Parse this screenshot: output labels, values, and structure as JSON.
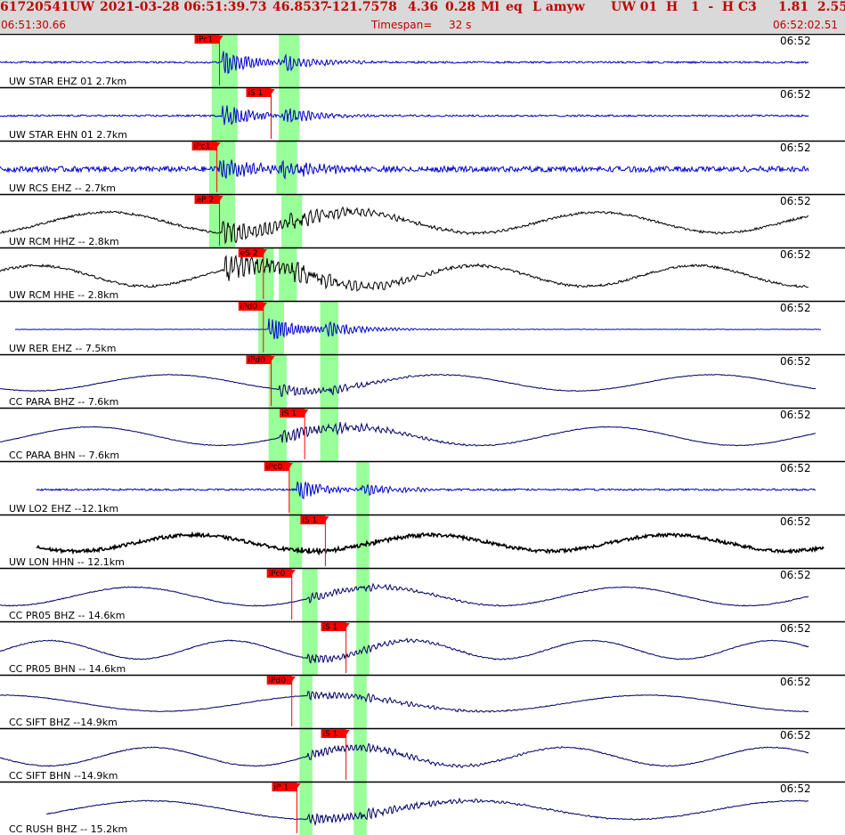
{
  "header": {
    "event_id": "61720541",
    "network": "UW",
    "origin_datetime": "2021-03-28 06:51:39.73",
    "latitude": "46.8537",
    "longitude": "-121.7578",
    "depth": "4.36",
    "magnitude": "0.28",
    "mag_type": "Ml",
    "event_type": "eq",
    "flags": "L amyw",
    "source_info": "UW 01  H   1  -  H C3",
    "extra_values": "1.81  2.55",
    "start_time": "06:51:30.66",
    "timespan_label": "Timespan=",
    "timespan_value": "32 s",
    "end_time": "06:52:02.51"
  },
  "chart_data": {
    "type": "line",
    "title": "61720541 UW 2021-03-28 06:51:39.73   46.8537 -121.7578   4.36  0.28 Ml  eq  L amyw",
    "time_window": [
      "06:51:30.66",
      "06:52:02.51"
    ],
    "timespan_s": 32,
    "time_mark_label": "06:52",
    "colors": {
      "header_bg": "#d9d9d9",
      "header_text": "#c00000",
      "pick": "#ff0000",
      "pick_window": "#99ff99",
      "trace_blue": "#0000cc",
      "trace_navy": "#000066",
      "trace_black": "#000000"
    },
    "traces": [
      {
        "label": "UW STAR EHZ 01 2.7km",
        "net": "UW",
        "sta": "STAR",
        "chan": "EHZ",
        "dist_km": 2.7,
        "color": "#0000cc",
        "picks": [
          {
            "label": "iPc1",
            "t": 8.5
          }
        ],
        "windows": [
          [
            8.2,
            9.2
          ],
          [
            10.8,
            11.6
          ]
        ],
        "waveform": {
          "onset_t": 8.6,
          "s_t": 11.0,
          "noise": 0.04,
          "amp": 0.55,
          "decay": 1.2,
          "freq": 7,
          "swell_amp": 0,
          "swell_period": 10,
          "t_start": 0,
          "t_end": 31.3
        }
      },
      {
        "label": "UW STAR EHN 01 2.7km",
        "net": "UW",
        "sta": "STAR",
        "chan": "EHN",
        "dist_km": 2.7,
        "color": "#0000cc",
        "picks": [
          {
            "label": "iS 1",
            "t": 10.5
          }
        ],
        "windows": [
          [
            8.2,
            9.2
          ],
          [
            10.8,
            11.6
          ]
        ],
        "waveform": {
          "onset_t": 8.6,
          "s_t": 11.0,
          "noise": 0.04,
          "amp": 0.55,
          "decay": 1.1,
          "freq": 7,
          "swell_amp": 0,
          "swell_period": 10,
          "t_start": 0,
          "t_end": 31.3
        }
      },
      {
        "label": "UW RCS EHZ -- 2.7km",
        "net": "UW",
        "sta": "RCS",
        "chan": "EHZ",
        "dist_km": 2.7,
        "color": "#0000cc",
        "picks": [
          {
            "label": "iPc1",
            "t": 8.4
          }
        ],
        "windows": [
          [
            8.1,
            9.1
          ],
          [
            10.7,
            11.5
          ]
        ],
        "waveform": {
          "onset_t": 8.5,
          "s_t": 10.9,
          "noise": 0.12,
          "amp": 0.45,
          "decay": 1.5,
          "freq": 7,
          "swell_amp": 0,
          "swell_period": 10,
          "t_start": 0,
          "t_end": 31.3
        }
      },
      {
        "label": "UW RCM HHZ -- 2.8km",
        "net": "UW",
        "sta": "RCM",
        "chan": "HHZ",
        "dist_km": 2.8,
        "color": "#000000",
        "picks": [
          {
            "label": "eP 2",
            "t": 8.5
          }
        ],
        "windows": [
          [
            8.1,
            9.1
          ],
          [
            10.9,
            11.7
          ]
        ],
        "waveform": {
          "onset_t": 8.6,
          "s_t": 11.2,
          "noise": 0.05,
          "amp": 0.5,
          "decay": 2.5,
          "freq": 5,
          "swell_amp": 0.45,
          "swell_period": 9.5,
          "t_start": 0,
          "t_end": 31.3
        }
      },
      {
        "label": "UW RCM HHE -- 2.8km",
        "net": "UW",
        "sta": "RCM",
        "chan": "HHE",
        "dist_km": 2.8,
        "color": "#000000",
        "picks": [
          {
            "label": "eS 2",
            "t": 10.2
          }
        ],
        "windows": [
          [
            9.9,
            10.6
          ],
          [
            10.8,
            11.5
          ]
        ],
        "waveform": {
          "onset_t": 8.7,
          "s_t": 11.2,
          "noise": 0.05,
          "amp": 0.55,
          "decay": 2.8,
          "freq": 5,
          "swell_amp": 0.45,
          "swell_period": 8.5,
          "t_start": 0,
          "t_end": 31.3
        }
      },
      {
        "label": "UW RER EHZ -- 7.5km",
        "net": "UW",
        "sta": "RER",
        "chan": "EHZ",
        "dist_km": 7.5,
        "color": "#0000cc",
        "picks": [
          {
            "label": "iPd0",
            "t": 10.2
          }
        ],
        "windows": [
          [
            10.0,
            11.0
          ],
          [
            12.4,
            13.1
          ]
        ],
        "waveform": {
          "onset_t": 10.4,
          "s_t": 12.6,
          "noise": 0.01,
          "amp": 0.5,
          "decay": 1.3,
          "freq": 8,
          "swell_amp": 0,
          "swell_period": 10,
          "t_start": 0.6,
          "t_end": 31.8
        }
      },
      {
        "label": "CC PARA BHZ -- 7.6km",
        "net": "CC",
        "sta": "PARA",
        "chan": "BHZ",
        "dist_km": 7.6,
        "color": "#000066",
        "picks": [
          {
            "label": "iPd0",
            "t": 10.5
          }
        ],
        "windows": [
          [
            10.4,
            11.1
          ],
          [
            12.4,
            13.1
          ]
        ],
        "waveform": {
          "onset_t": 10.8,
          "s_t": 12.7,
          "noise": 0.015,
          "amp": 0.3,
          "decay": 1.5,
          "freq": 6,
          "swell_amp": 0.35,
          "swell_period": 10.5,
          "t_start": 0,
          "t_end": 31.6
        }
      },
      {
        "label": "CC PARA BHN -- 7.6km",
        "net": "CC",
        "sta": "PARA",
        "chan": "BHN",
        "dist_km": 7.6,
        "color": "#000066",
        "picks": [
          {
            "label": "iS 1",
            "t": 11.8
          }
        ],
        "windows": [
          [
            10.4,
            11.1
          ],
          [
            12.4,
            13.1
          ]
        ],
        "waveform": {
          "onset_t": 10.8,
          "s_t": 12.7,
          "noise": 0.015,
          "amp": 0.35,
          "decay": 2,
          "freq": 6,
          "swell_amp": 0.4,
          "swell_period": 10,
          "t_start": 0,
          "t_end": 31.6
        }
      },
      {
        "label": "UW LO2 EHZ --12.1km",
        "net": "UW",
        "sta": "LO2",
        "chan": "EHZ",
        "dist_km": 12.1,
        "color": "#0000cc",
        "picks": [
          {
            "label": "iPc0",
            "t": 11.2
          }
        ],
        "windows": [
          [
            11.2,
            11.7
          ],
          [
            13.8,
            14.3
          ]
        ],
        "waveform": {
          "onset_t": 11.5,
          "s_t": 14.0,
          "noise": 0.04,
          "amp": 0.45,
          "decay": 1.1,
          "freq": 7,
          "swell_amp": 0,
          "swell_period": 10,
          "t_start": 1.4,
          "t_end": 31.6
        }
      },
      {
        "label": "UW LON HHN -- 12.1km",
        "net": "UW",
        "sta": "LON",
        "chan": "HHN",
        "dist_km": 12.1,
        "color": "#000000",
        "picks": [
          {
            "label": "iS 1",
            "t": 12.6
          }
        ],
        "windows": [
          [
            11.2,
            11.7
          ],
          [
            13.8,
            14.3
          ]
        ],
        "waveform": {
          "onset_t": 11.5,
          "s_t": 14.0,
          "noise": 0.07,
          "amp": 0.1,
          "decay": 1.5,
          "freq": 7,
          "swell_amp": 0.35,
          "swell_period": 9.2,
          "t_start": 1.4,
          "t_end": 31.9
        }
      },
      {
        "label": "CC PR05 BHZ -- 14.6km",
        "net": "CC",
        "sta": "PR05",
        "chan": "BHZ",
        "dist_km": 14.6,
        "color": "#000066",
        "picks": [
          {
            "label": "iPc0",
            "t": 11.3
          }
        ],
        "windows": [
          [
            11.7,
            12.3
          ],
          [
            13.8,
            14.3
          ]
        ],
        "waveform": {
          "onset_t": 11.9,
          "s_t": 14.0,
          "noise": 0.02,
          "amp": 0.2,
          "decay": 2,
          "freq": 6,
          "swell_amp": 0.4,
          "swell_period": 9.5,
          "t_start": 0,
          "t_end": 31.3
        }
      },
      {
        "label": "CC PR05 BHN -- 14.6km",
        "net": "CC",
        "sta": "PR05",
        "chan": "BHN",
        "dist_km": 14.6,
        "color": "#000066",
        "picks": [
          {
            "label": "iS 1",
            "t": 13.4
          }
        ],
        "windows": [
          [
            11.7,
            12.3
          ],
          [
            13.8,
            14.3
          ]
        ],
        "waveform": {
          "onset_t": 11.9,
          "s_t": 14.0,
          "noise": 0.02,
          "amp": 0.2,
          "decay": 2,
          "freq": 6,
          "swell_amp": 0.4,
          "swell_period": 7,
          "t_start": 0,
          "t_end": 31.3
        }
      },
      {
        "label": "CC SIFT BHZ --14.9km",
        "net": "CC",
        "sta": "SIFT",
        "chan": "BHZ",
        "dist_km": 14.9,
        "color": "#000066",
        "picks": [
          {
            "label": "iPd0",
            "t": 11.3
          }
        ],
        "windows": [
          [
            11.6,
            12.1
          ],
          [
            13.7,
            14.2
          ]
        ],
        "waveform": {
          "onset_t": 11.9,
          "s_t": 14.0,
          "noise": 0.015,
          "amp": 0.2,
          "decay": 2.5,
          "freq": 6,
          "swell_amp": 0.35,
          "swell_period": 12.5,
          "t_start": 0,
          "t_end": 31.3
        }
      },
      {
        "label": "CC SIFT BHN --14.9km",
        "net": "CC",
        "sta": "SIFT",
        "chan": "BHN",
        "dist_km": 14.9,
        "color": "#000066",
        "picks": [
          {
            "label": "iS 1",
            "t": 13.4
          }
        ],
        "windows": [
          [
            11.6,
            12.1
          ],
          [
            13.7,
            14.2
          ]
        ],
        "waveform": {
          "onset_t": 11.9,
          "s_t": 14.0,
          "noise": 0.02,
          "amp": 0.2,
          "decay": 3,
          "freq": 6,
          "swell_amp": 0.4,
          "swell_period": 8,
          "t_start": 0,
          "t_end": 31.3
        }
      },
      {
        "label": "CC RUSH BHZ -- 15.2km",
        "net": "CC",
        "sta": "RUSH",
        "chan": "BHZ",
        "dist_km": 15.2,
        "color": "#000066",
        "picks": [
          {
            "label": "iP 1",
            "t": 11.5
          }
        ],
        "windows": [
          [
            11.6,
            12.1
          ],
          [
            13.7,
            14.2
          ]
        ],
        "waveform": {
          "onset_t": 11.9,
          "s_t": 14.0,
          "noise": 0.02,
          "amp": 0.25,
          "decay": 3,
          "freq": 6,
          "swell_amp": 0.4,
          "swell_period": 12.5,
          "t_start": 1.8,
          "t_end": 31.3
        }
      }
    ]
  }
}
